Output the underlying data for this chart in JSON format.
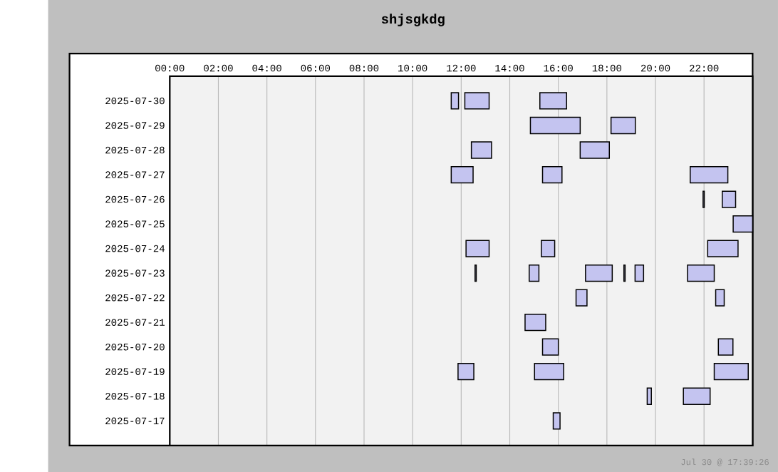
{
  "chart_data": {
    "type": "bar",
    "orientation": "horizontal",
    "title": "shjsgkdg",
    "annotations": [
      "Jul 30 @ 17:39:26"
    ],
    "categories": [
      "2025-07-30",
      "2025-07-29",
      "2025-07-28",
      "2025-07-27",
      "2025-07-26",
      "2025-07-25",
      "2025-07-24",
      "2025-07-23",
      "2025-07-22",
      "2025-07-21",
      "2025-07-20",
      "2025-07-19",
      "2025-07-18",
      "2025-07-17"
    ],
    "xlim": [
      0,
      24
    ],
    "xticks": [
      {
        "value": 0,
        "label": "00:00"
      },
      {
        "value": 2,
        "label": "02:00"
      },
      {
        "value": 4,
        "label": "04:00"
      },
      {
        "value": 6,
        "label": "06:00"
      },
      {
        "value": 8,
        "label": "08:00"
      },
      {
        "value": 10,
        "label": "10:00"
      },
      {
        "value": 12,
        "label": "12:00"
      },
      {
        "value": 14,
        "label": "14:00"
      },
      {
        "value": 16,
        "label": "16:00"
      },
      {
        "value": 18,
        "label": "18:00"
      },
      {
        "value": 20,
        "label": "20:00"
      },
      {
        "value": 22,
        "label": "22:00"
      }
    ],
    "grid": "x",
    "series": [
      {
        "color": "#c4c4f0",
        "base": [
          11.59,
          14.85,
          12.42,
          11.59,
          21.96,
          23.2,
          12.2,
          12.57,
          16.73,
          14.63,
          15.35,
          11.87,
          19.66,
          15.79
        ],
        "values": [
          0.3,
          2.05,
          0.83,
          0.9,
          0.05,
          0.8,
          0.95,
          0.05,
          0.45,
          0.85,
          0.65,
          0.65,
          0.17,
          0.28
        ]
      },
      {
        "color": "#c4c4f0",
        "base": [
          12.15,
          18.17,
          16.9,
          15.35,
          22.75,
          null,
          15.3,
          14.8,
          22.48,
          null,
          22.59,
          15.02,
          21.15,
          null
        ],
        "values": [
          1.0,
          1.0,
          1.2,
          0.8,
          0.55,
          null,
          0.55,
          0.4,
          0.35,
          null,
          0.6,
          1.2,
          1.1,
          null
        ]
      },
      {
        "color": "#c4c4f0",
        "base": [
          15.24,
          null,
          null,
          21.43,
          null,
          null,
          22.15,
          17.12,
          null,
          null,
          null,
          22.42,
          null,
          null
        ],
        "values": [
          1.1,
          null,
          null,
          1.55,
          null,
          null,
          1.25,
          1.1,
          null,
          null,
          null,
          1.4,
          null,
          null
        ]
      },
      {
        "color": "#c4c4f0",
        "base": [
          null,
          null,
          null,
          null,
          null,
          null,
          null,
          18.7,
          null,
          null,
          null,
          null,
          null,
          null
        ],
        "values": [
          null,
          null,
          null,
          null,
          null,
          null,
          null,
          0.05,
          null,
          null,
          null,
          null,
          null,
          null
        ]
      },
      {
        "color": "#c4c4f0",
        "base": [
          null,
          null,
          null,
          null,
          null,
          null,
          null,
          19.16,
          null,
          null,
          null,
          null,
          null,
          null
        ],
        "values": [
          null,
          null,
          null,
          null,
          null,
          null,
          null,
          0.35,
          null,
          null,
          null,
          null,
          null,
          null
        ]
      },
      {
        "color": "#c4c4f0",
        "base": [
          null,
          null,
          null,
          null,
          null,
          null,
          null,
          21.32,
          null,
          null,
          null,
          null,
          null,
          null
        ],
        "values": [
          null,
          null,
          null,
          null,
          null,
          null,
          null,
          1.1,
          null,
          null,
          null,
          null,
          null,
          null
        ]
      }
    ]
  }
}
